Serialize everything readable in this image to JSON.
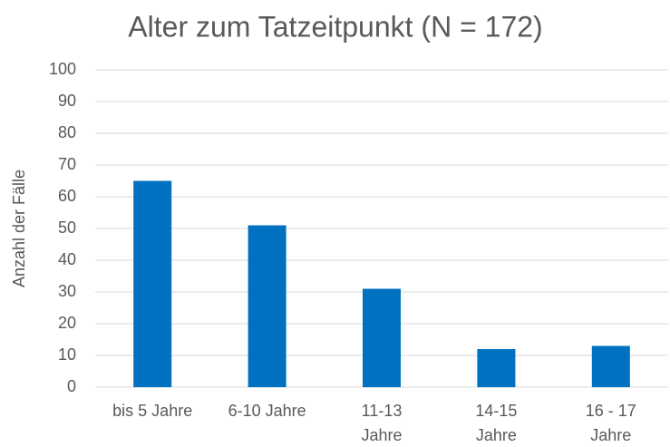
{
  "chart_data": {
    "type": "bar",
    "title": "Alter zum Tatzeitpunkt (N = 172)",
    "y_label": "Anzahl der Fälle",
    "categories": [
      "bis 5 Jahre",
      "6-10 Jahre",
      "11-13\nJahre",
      "14-15\nJahre",
      "16 - 17\nJahre"
    ],
    "values": [
      65,
      51,
      31,
      12,
      13
    ],
    "color": "#0070c0",
    "ylim": [
      0,
      100
    ],
    "yticks": [
      0,
      10,
      20,
      30,
      40,
      50,
      60,
      70,
      80,
      90,
      100
    ],
    "grid": true
  }
}
